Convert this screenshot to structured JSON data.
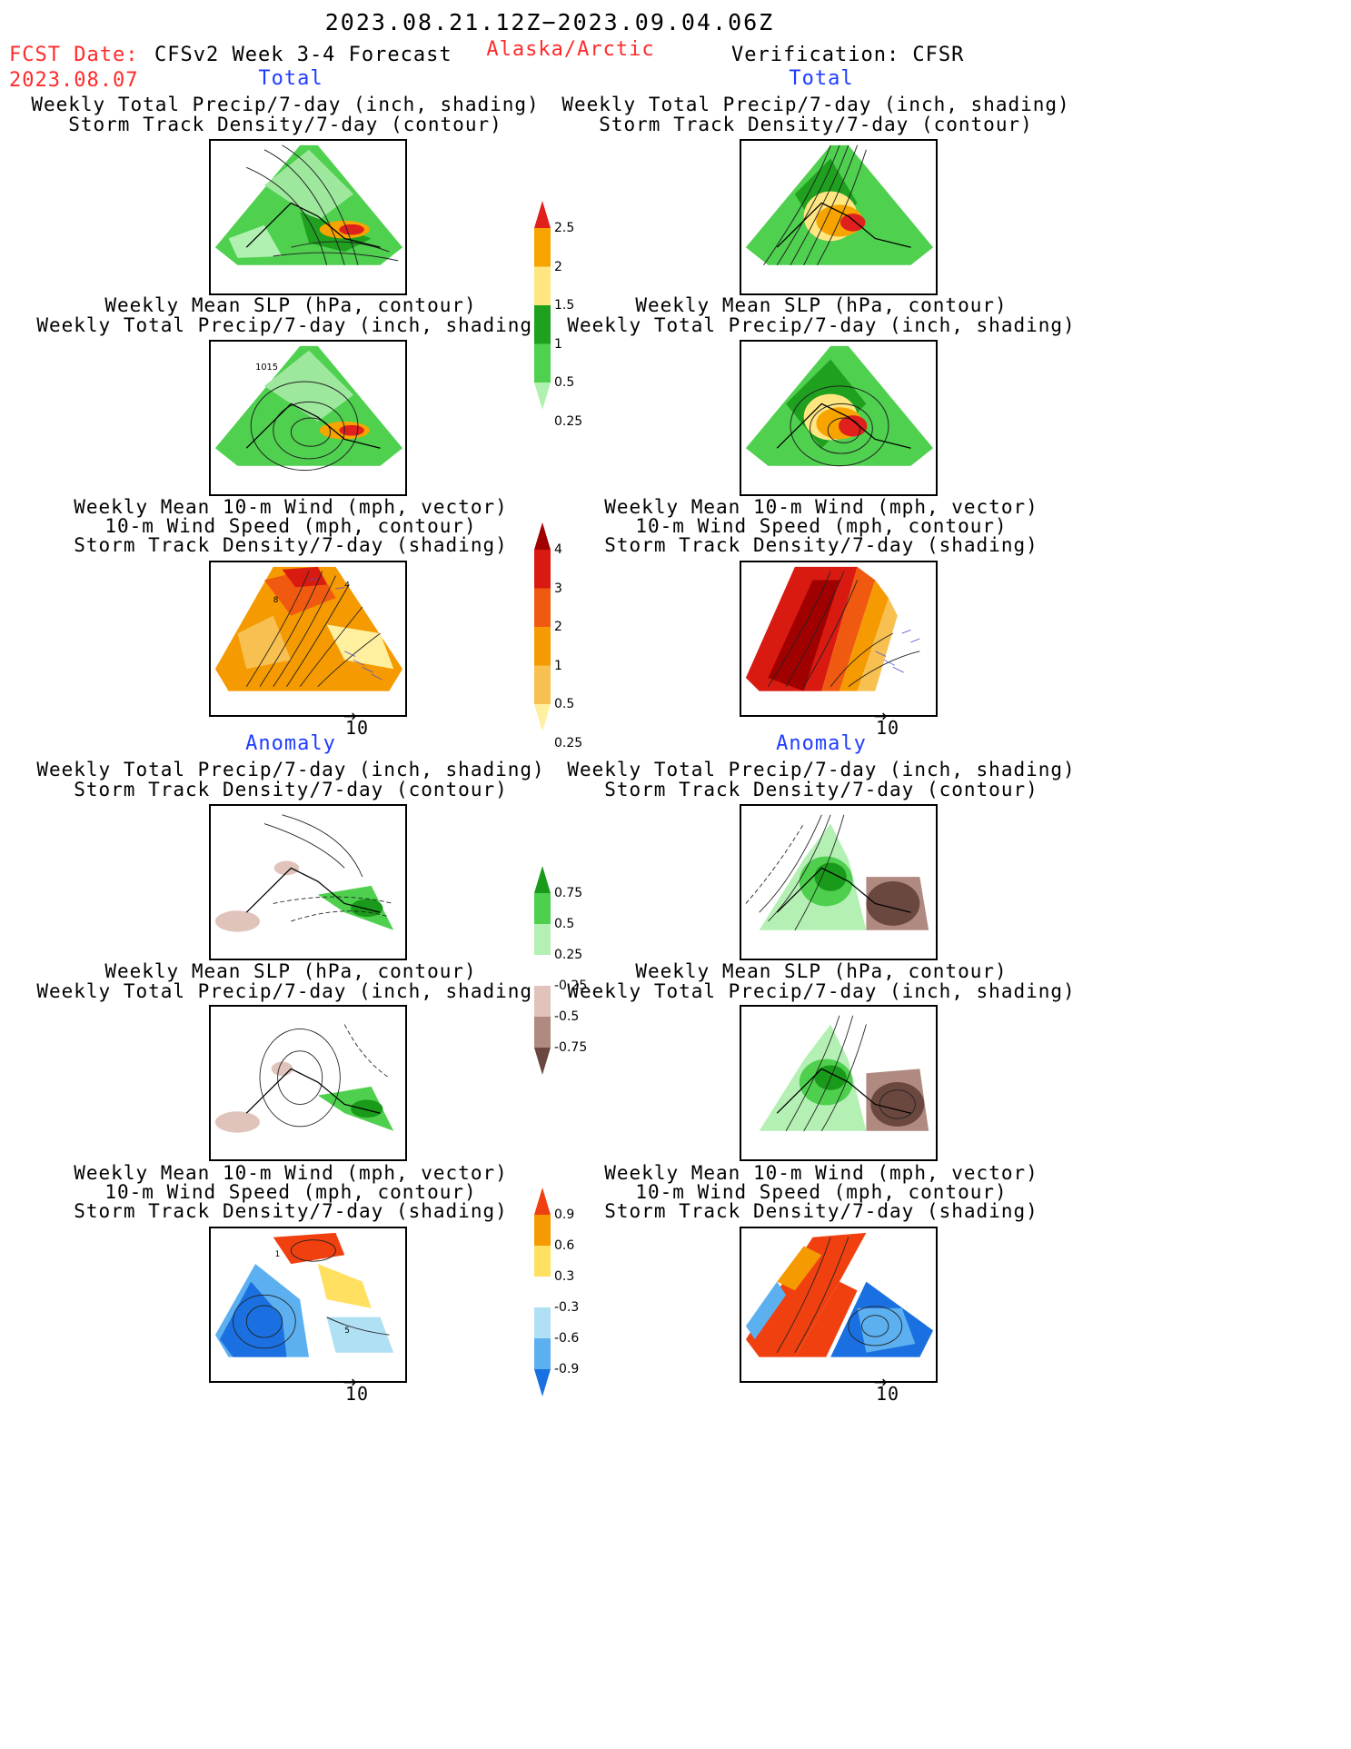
{
  "header": {
    "date_range": "2023.08.21.12Z−2023.09.04.06Z",
    "fcst_label": "FCST Date:",
    "fcst_date": "2023.08.07",
    "model": "CFSv2 Week 3-4 Forecast",
    "region": "Alaska/Arctic",
    "verification": "Verification: CFSR"
  },
  "sections": {
    "total": "Total",
    "anomaly": "Anomaly"
  },
  "titles": {
    "precip_storm": [
      "Weekly Total Precip/7-day (inch, shading)",
      "Storm Track Density/7-day (contour)"
    ],
    "slp_precip": [
      "Weekly Mean SLP (hPa, contour)",
      "Weekly Total Precip/7-day (inch, shading)"
    ],
    "wind": [
      "Weekly Mean 10-m Wind (mph, vector)",
      "10-m Wind Speed (mph, contour)",
      "Storm Track Density/7-day (shading)"
    ]
  },
  "annotations": {
    "slp_contour_label": "1015",
    "vector_scale": "10",
    "wind_contour_4": "4",
    "wind_contour_8": "8",
    "wind_contour_1": "1",
    "wind_contour_5": "5"
  },
  "colorbars": {
    "precip_total": {
      "labels": [
        "2.5",
        "2",
        "1.5",
        "1",
        "0.5",
        "0.25"
      ],
      "colors": [
        "#e0201c",
        "#f7a400",
        "#ffe680",
        "#1fa01f",
        "#4fd04f",
        "#b0f0b0"
      ]
    },
    "storm_total": {
      "labels": [
        "4",
        "3",
        "2",
        "1",
        "0.5",
        "0.25"
      ],
      "colors": [
        "#a00000",
        "#d81a10",
        "#f05a10",
        "#f59a00",
        "#f8c050",
        "#fff0a0"
      ]
    },
    "precip_anom": {
      "labels": [
        "0.75",
        "0.5",
        "0.25",
        "-0.25",
        "-0.5",
        "-0.75"
      ],
      "colors": [
        "#1a9a1a",
        "#4ed04e",
        "#b4f0b4",
        "#ffffff",
        "#e0c4bc",
        "#b08a80",
        "#6a4840"
      ]
    },
    "storm_anom": {
      "labels": [
        "0.9",
        "0.6",
        "0.3",
        "-0.3",
        "-0.6",
        "-0.9"
      ],
      "colors": [
        "#f04010",
        "#f59a00",
        "#ffe060",
        "#ffffff",
        "#b0e0f4",
        "#5cb0f0",
        "#1a70e0"
      ]
    }
  }
}
